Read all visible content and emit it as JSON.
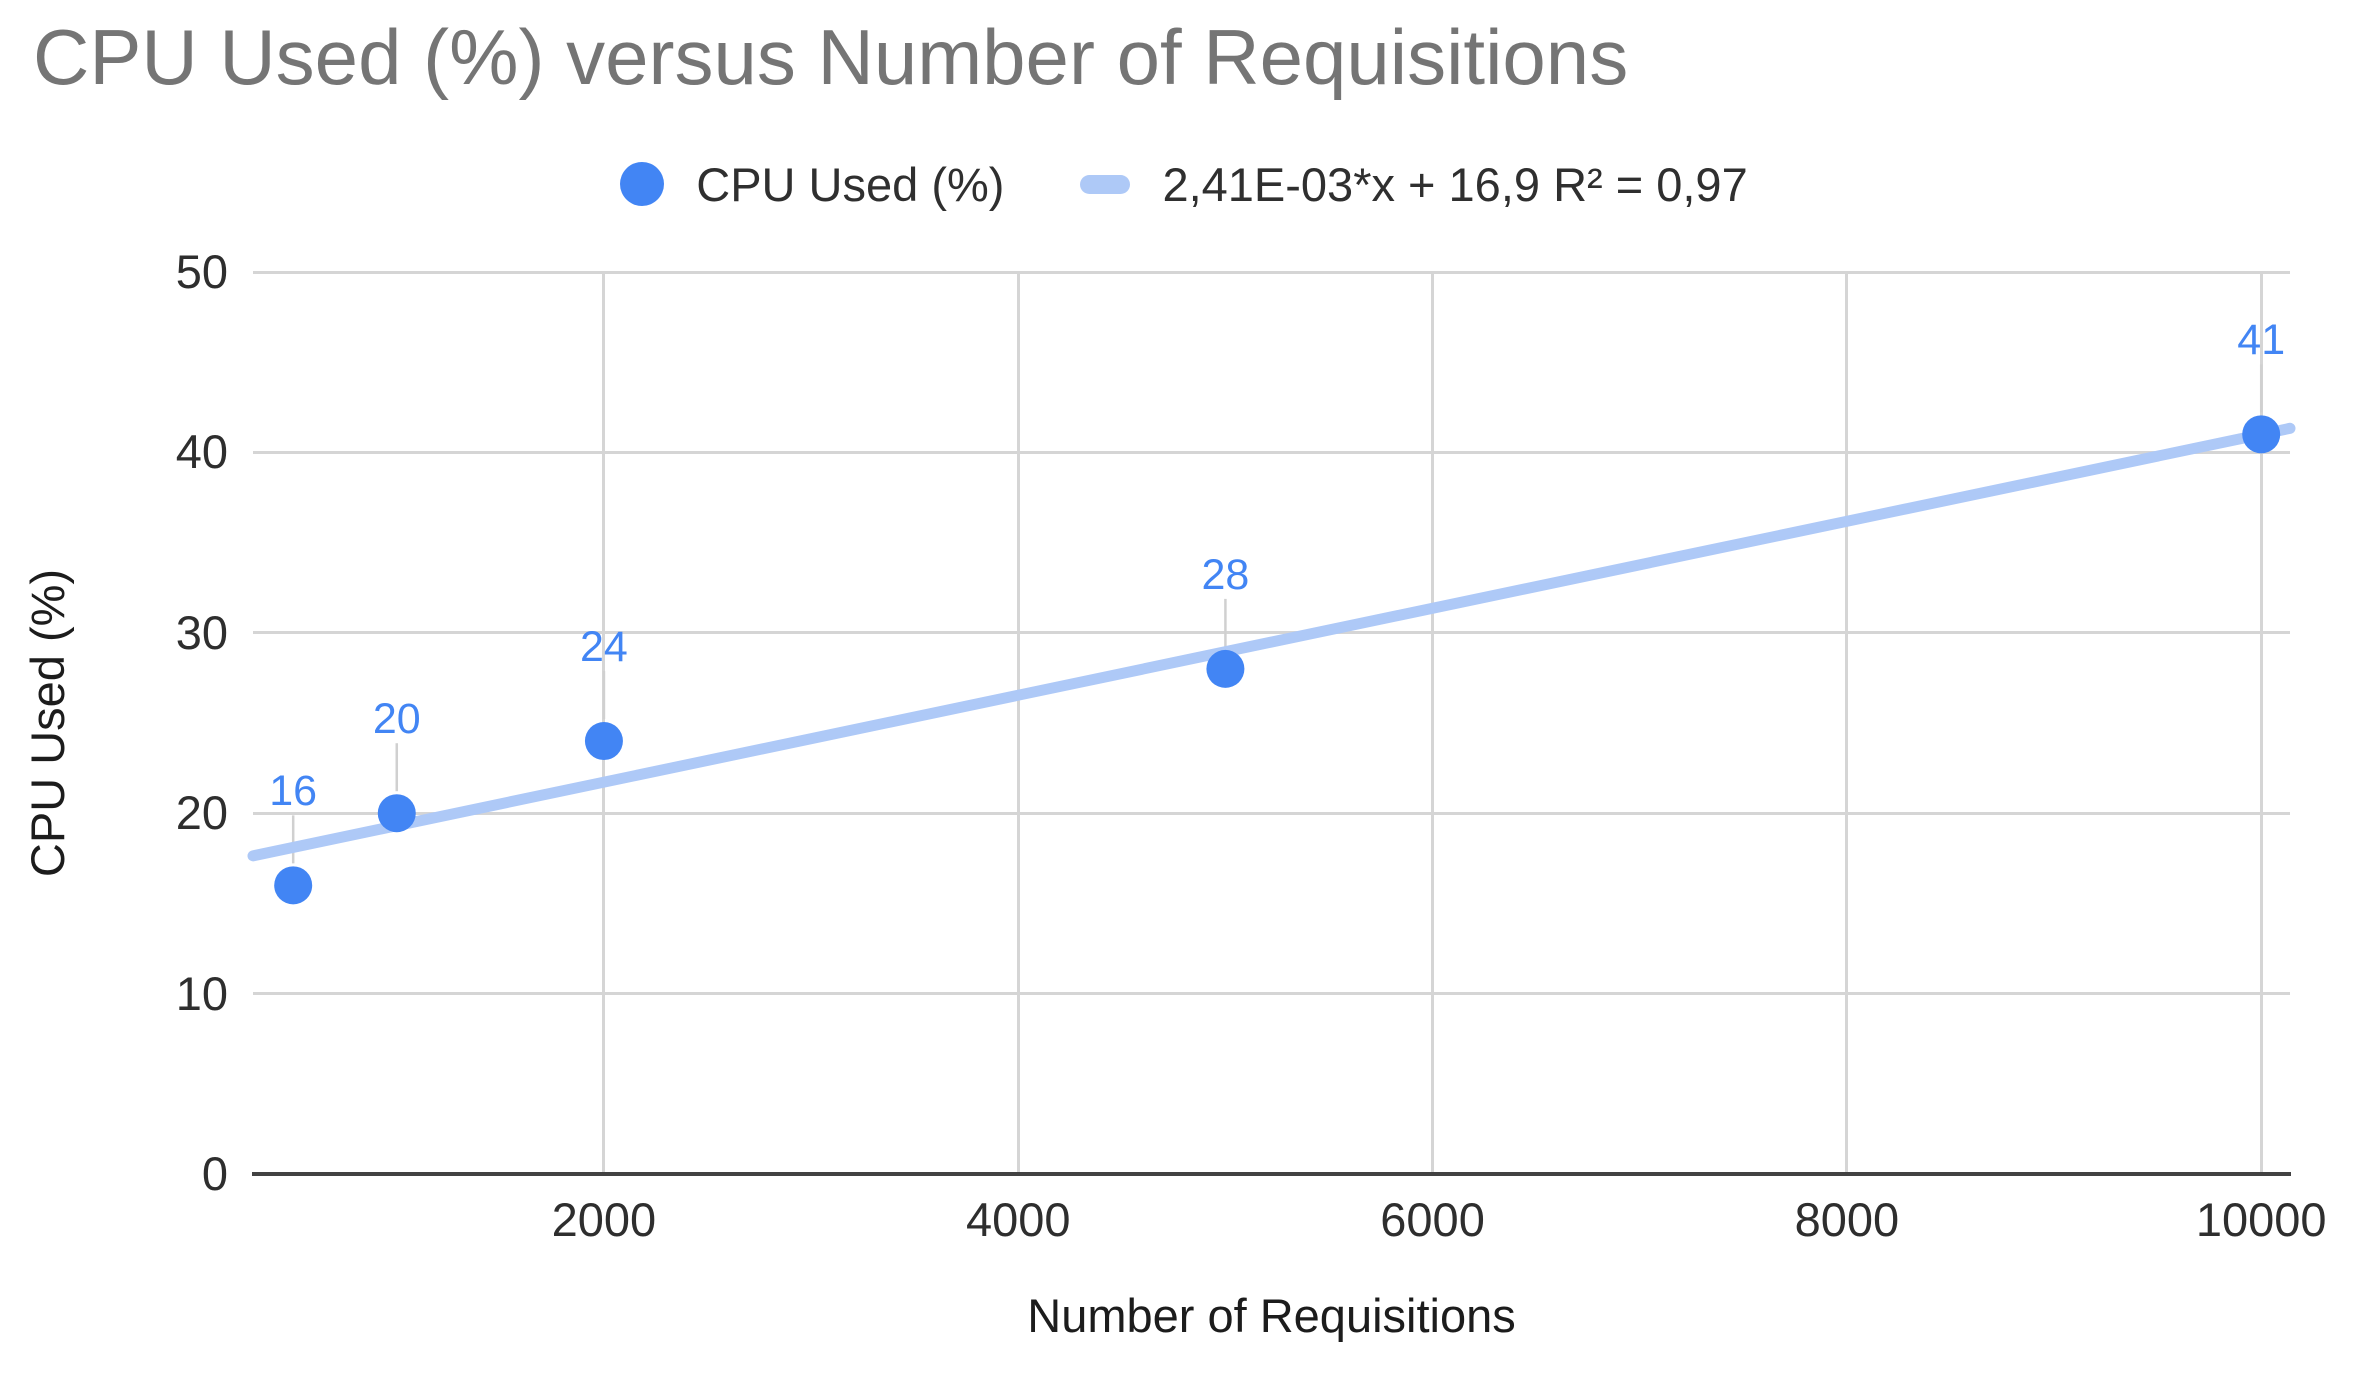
{
  "chart_data": {
    "type": "scatter",
    "title": "CPU Used (%) versus Number of Requisitions",
    "xlabel": "Number of Requisitions",
    "ylabel": "CPU Used (%)",
    "series": [
      {
        "name": "CPU Used (%)",
        "x": [
          500,
          1000,
          2000,
          5000,
          10000
        ],
        "values": [
          16,
          20,
          24,
          28,
          41
        ],
        "point_labels": [
          "16",
          "20",
          "24",
          "28",
          "41"
        ]
      }
    ],
    "trendline": {
      "label": "2,41E-03*x + 16,9 R² = 0,97",
      "slope": 0.00241,
      "intercept": 16.9,
      "r_squared": 0.97
    },
    "x_ticks": [
      2000,
      4000,
      6000,
      8000,
      10000
    ],
    "y_ticks": [
      0,
      10,
      20,
      30,
      40,
      50
    ],
    "xlim": [
      306,
      10139
    ],
    "ylim": [
      0,
      50
    ],
    "grid": true,
    "legend_position": "top"
  },
  "colors": {
    "series_blue": "#4285f4",
    "trendline_blue": "#aec9f7",
    "data_label_blue": "#4285f4",
    "title_gray": "#757575",
    "tick_text": "#2e2e2e",
    "gridline": "#d5d5d5",
    "axis_line": "#424242",
    "leader_gray": "#d0d0d0",
    "background": "#ffffff"
  }
}
